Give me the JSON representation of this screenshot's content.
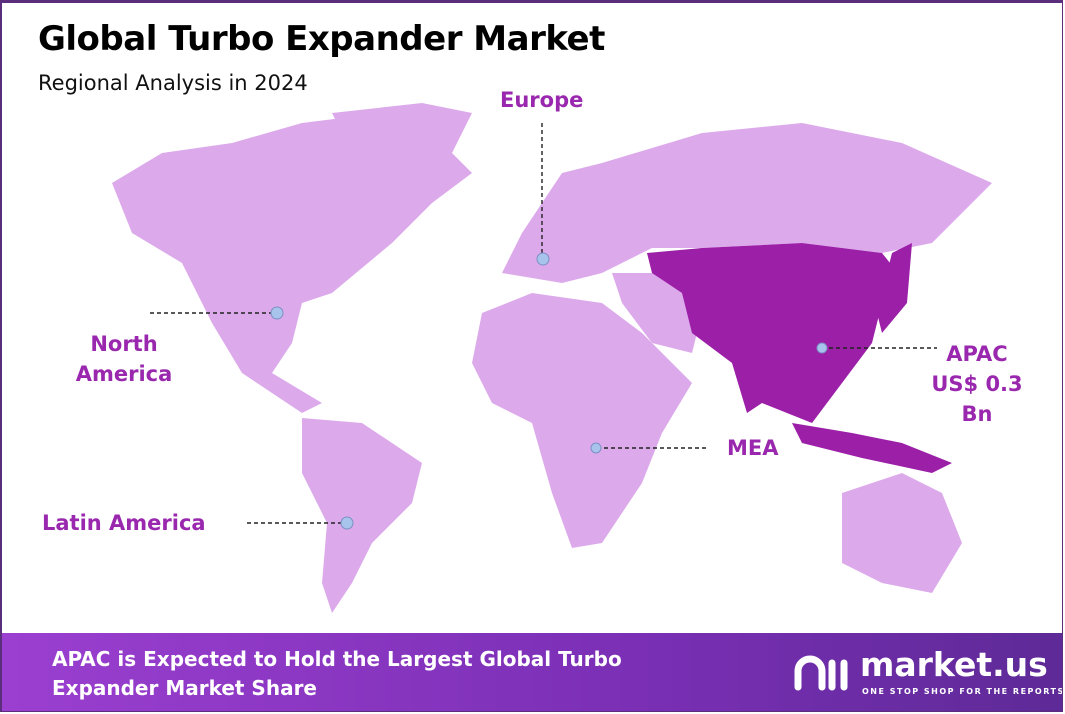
{
  "header": {
    "title": "Global Turbo Expander Market",
    "subtitle": "Regional Analysis in 2024"
  },
  "colors": {
    "land": "#dcaaeb",
    "highlight": "#9c1fa8",
    "label": "#9a28ae",
    "marker": "#a9c4ec",
    "border": "#5b2d7d"
  },
  "regions": [
    {
      "name": "North America",
      "label": "North America",
      "highlighted": false
    },
    {
      "name": "Europe",
      "label": "Europe",
      "highlighted": false
    },
    {
      "name": "APAC",
      "label": "APAC",
      "value": "US$ 0.3 Bn",
      "highlighted": true
    },
    {
      "name": "MEA",
      "label": "MEA",
      "highlighted": false
    },
    {
      "name": "Latin America",
      "label": "Latin America",
      "highlighted": false
    }
  ],
  "footer": {
    "text": "APAC is Expected to Hold the Largest Global Turbo Expander Market Share",
    "logo_name": "market.us",
    "logo_tagline": "ONE STOP SHOP FOR THE REPORTS"
  }
}
